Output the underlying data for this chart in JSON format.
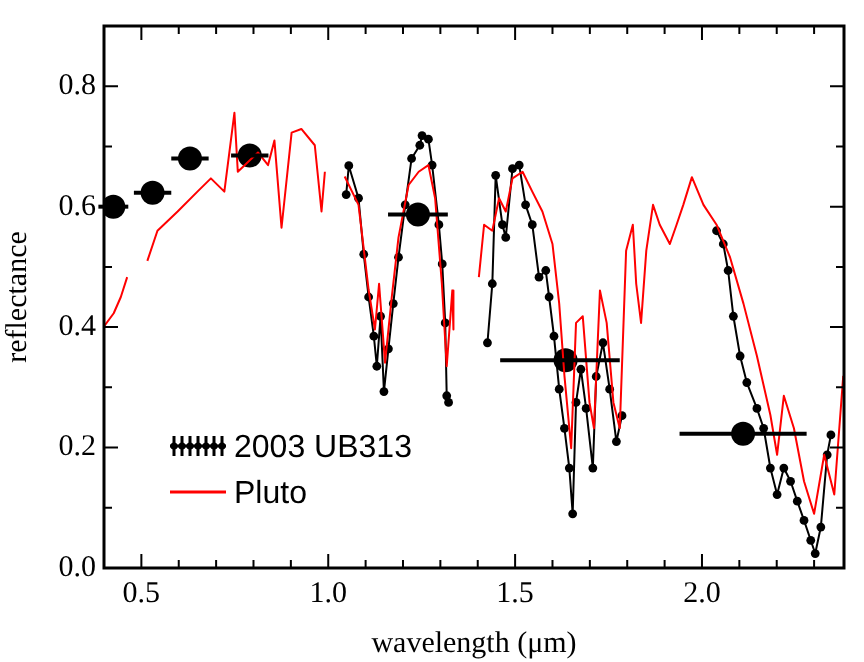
{
  "chart_data": {
    "type": "line",
    "xlabel": "wavelength (μm)",
    "ylabel": "reflectance",
    "xlim": [
      0.4,
      2.38
    ],
    "ylim": [
      0,
      0.9
    ],
    "xticks": [
      {
        "value": 0.4,
        "label": null
      },
      {
        "value": 0.5,
        "label": "0.5"
      },
      {
        "value": 0.6,
        "label": null
      },
      {
        "value": 0.7,
        "label": null
      },
      {
        "value": 0.8,
        "label": null
      },
      {
        "value": 0.9,
        "label": null
      },
      {
        "value": 1,
        "label": "1.0"
      },
      {
        "value": 1.1,
        "label": null
      },
      {
        "value": 1.2,
        "label": null
      },
      {
        "value": 1.3,
        "label": null
      },
      {
        "value": 1.4,
        "label": null
      },
      {
        "value": 1.5,
        "label": "1.5"
      },
      {
        "value": 1.6,
        "label": null
      },
      {
        "value": 1.7,
        "label": null
      },
      {
        "value": 1.8,
        "label": null
      },
      {
        "value": 1.9,
        "label": null
      },
      {
        "value": 2,
        "label": "2.0"
      },
      {
        "value": 2.1,
        "label": null
      },
      {
        "value": 2.2,
        "label": null
      },
      {
        "value": 2.3,
        "label": null
      }
    ],
    "yticks": [
      {
        "value": 0,
        "label": "0.0"
      },
      {
        "value": 0.1,
        "label": null
      },
      0.2,
      {
        "value": 0.3,
        "label": null
      },
      0.4,
      {
        "value": 0.5,
        "label": null
      },
      0.6,
      {
        "value": 0.7,
        "label": null
      },
      0.8
    ],
    "grid": false,
    "legend": "bottom left",
    "marker": "circle",
    "line_style": "solid",
    "series": [
      {
        "name": "2003 UB313",
        "color": "#000000",
        "type": "line",
        "x": [
          1.048,
          1.055,
          1.081,
          1.095,
          1.108,
          1.122,
          1.13,
          1.14,
          1.149,
          1.161,
          1.174,
          1.188,
          1.206,
          1.223,
          1.245,
          1.251,
          1.268,
          1.278,
          1.296,
          1.305,
          1.313,
          1.317,
          1.322,
          1.37,
          1.426,
          1.439,
          1.448,
          1.466,
          1.475,
          1.493,
          1.511,
          1.528,
          1.546,
          1.564,
          1.582,
          1.591,
          1.604,
          1.618,
          1.632,
          1.645,
          1.654,
          1.663,
          1.676,
          1.69,
          1.708,
          1.717,
          1.735,
          1.753,
          1.771,
          1.786,
          1.9,
          2.039,
          2.057,
          2.07,
          2.084,
          2.102,
          2.12,
          2.147,
          2.165,
          2.183,
          2.201,
          2.219,
          2.237,
          2.255,
          2.273,
          2.291,
          2.303,
          2.318,
          2.335,
          2.345
        ],
        "values": [
          0.62,
          0.668,
          0.614,
          0.521,
          0.45,
          0.385,
          0.335,
          0.418,
          0.293,
          0.364,
          0.439,
          0.516,
          0.603,
          0.68,
          0.702,
          0.718,
          0.712,
          0.669,
          0.57,
          0.505,
          0.407,
          0.286,
          0.275,
          null,
          0.374,
          0.472,
          0.652,
          0.57,
          0.549,
          0.663,
          0.669,
          0.603,
          0.57,
          0.483,
          0.494,
          0.45,
          0.385,
          0.297,
          0.232,
          0.166,
          0.09,
          0.275,
          0.33,
          0.265,
          0.166,
          0.318,
          0.374,
          0.297,
          0.21,
          0.253,
          null,
          0.56,
          0.538,
          0.494,
          0.418,
          0.352,
          0.308,
          0.265,
          0.232,
          0.166,
          0.122,
          0.166,
          0.144,
          0.111,
          0.079,
          0.046,
          0.024,
          0.068,
          0.188,
          0.221
        ]
      },
      {
        "color": "#000000",
        "type": "scatter",
        "x": [
          0.425,
          0.53,
          0.63,
          0.79,
          1.24,
          1.635,
          2.11
        ],
        "values": [
          0.6,
          0.623,
          0.68,
          0.685,
          0.587,
          0.345,
          0.223
        ],
        "xerrors": [
          0.04,
          0.05,
          0.05,
          0.05,
          0.08,
          [
            1.46,
            1.78
          ],
          [
            1.94,
            2.28
          ]
        ]
      },
      {
        "name": "Pluto",
        "color": "#ff0000",
        "type": "line",
        "marker": "none",
        "x": [
          0.4,
          0.426,
          0.445,
          0.462,
          0.49,
          0.516,
          0.543,
          0.597,
          0.65,
          0.686,
          0.722,
          0.749,
          0.758,
          0.812,
          0.839,
          0.856,
          0.875,
          0.902,
          0.928,
          0.964,
          0.982,
          0.991,
          1.02,
          1.044,
          1.081,
          1.108,
          1.125,
          1.136,
          1.152,
          1.17,
          1.188,
          1.215,
          1.242,
          1.268,
          1.286,
          1.304,
          1.317,
          1.332,
          1.335,
          1.37,
          1.403,
          1.417,
          1.439,
          1.457,
          1.475,
          1.493,
          1.52,
          1.546,
          1.573,
          1.6,
          1.618,
          1.632,
          1.65,
          1.663,
          1.681,
          1.699,
          1.711,
          1.727,
          1.745,
          1.763,
          1.78,
          1.797,
          1.815,
          1.824,
          1.837,
          1.851,
          1.869,
          1.887,
          1.914,
          1.932,
          1.95,
          1.973,
          2.004,
          2.039,
          2.075,
          2.111,
          2.147,
          2.183,
          2.201,
          2.219,
          2.246,
          2.273,
          2.3,
          2.327,
          2.354,
          2.378
        ],
        "values": [
          0.401,
          0.423,
          0.45,
          0.483,
          null,
          0.51,
          0.56,
          0.592,
          0.625,
          0.647,
          0.625,
          0.756,
          0.658,
          0.69,
          0.669,
          0.71,
          0.565,
          0.723,
          0.729,
          0.702,
          0.592,
          0.658,
          null,
          0.65,
          0.603,
          0.462,
          0.396,
          0.472,
          0.341,
          0.45,
          0.549,
          0.636,
          0.658,
          0.669,
          0.614,
          0.472,
          0.335,
          0.461,
          0.396,
          null,
          0.483,
          0.57,
          0.56,
          0.614,
          0.592,
          0.647,
          0.658,
          0.625,
          0.592,
          0.538,
          0.439,
          0.319,
          0.199,
          0.407,
          0.418,
          0.275,
          0.232,
          0.461,
          0.407,
          0.275,
          0.232,
          0.527,
          0.57,
          0.472,
          0.407,
          0.527,
          0.603,
          0.57,
          0.538,
          0.57,
          0.603,
          0.649,
          0.603,
          0.57,
          0.516,
          0.439,
          0.352,
          0.254,
          0.188,
          0.286,
          0.232,
          0.144,
          0.09,
          0.188,
          0.122,
          0.319
        ]
      }
    ]
  }
}
